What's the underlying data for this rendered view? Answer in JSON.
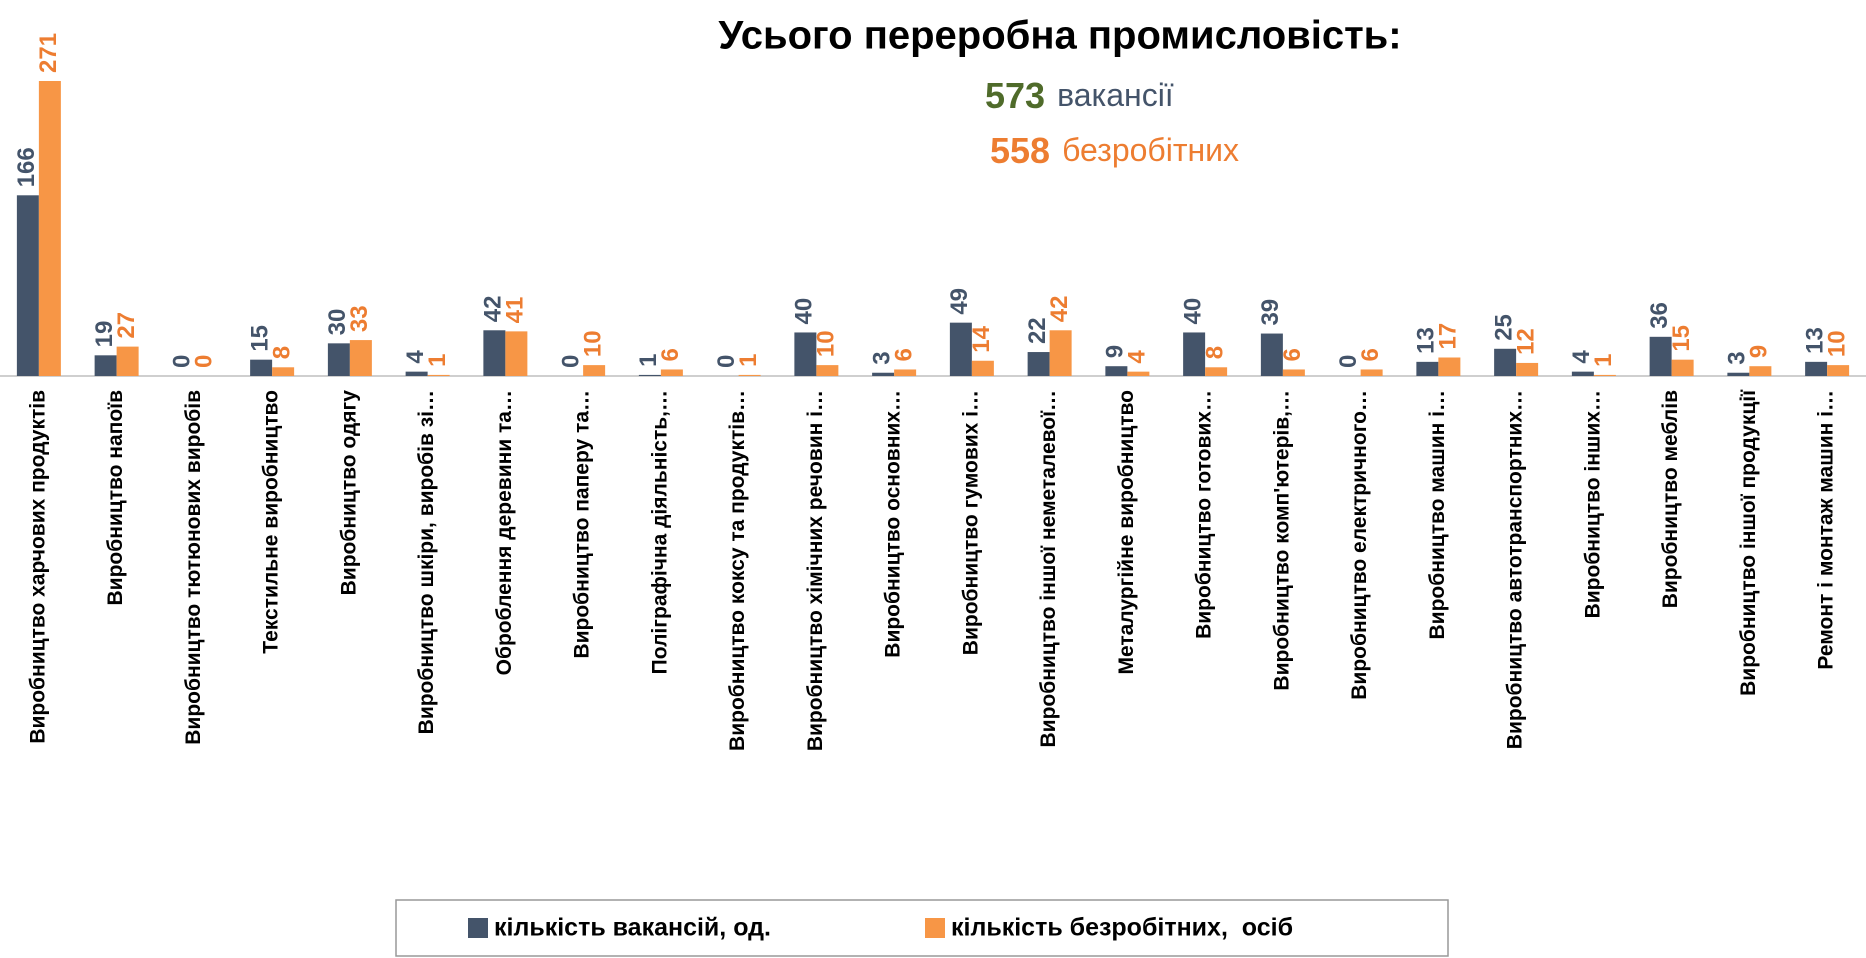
{
  "chart_data": {
    "type": "bar",
    "title": "Усього переробна промисловість:",
    "annotations": [
      {
        "number": 573,
        "text": "вакансії",
        "color": "#4f6b2a",
        "text_color": "#44546a"
      },
      {
        "number": 558,
        "text": "безробітних",
        "color": "#ed7d31",
        "text_color": "#ed7d31"
      }
    ],
    "categories": [
      "Виробництво харчових продуктів",
      "Виробництво напоїв",
      "Виробництво тютюнових виробів",
      "Текстильне виробництво",
      "Виробництво одягу",
      "Виробництво шкіри, виробів зі…",
      "Оброблення деревини та…",
      "Виробництво паперу та…",
      "Поліграфічна діяльність,…",
      "Виробництво коксу та продуктів…",
      "Виробництво хімічних речовин і…",
      "Виробництво основних…",
      "Виробництво гумових і…",
      "Виробництво іншої неметалевої…",
      "Металургійне виробництво",
      "Виробництво готових…",
      "Виробництво комп'ютерів,…",
      "Виробництво електричного…",
      "Виробництво машин і…",
      "Виробництво автотранспортних…",
      "Виробництво інших…",
      "Виробництво меблів",
      "Виробництво іншої продукції",
      "Ремонт і монтаж машин і…"
    ],
    "series": [
      {
        "name": "кількість вакансій, од.",
        "color": "#44546a",
        "values": [
          166,
          19,
          0,
          15,
          30,
          4,
          42,
          0,
          1,
          0,
          40,
          3,
          49,
          22,
          9,
          40,
          39,
          0,
          13,
          25,
          4,
          36,
          3,
          13
        ]
      },
      {
        "name": "кількість безробітних,  осіб",
        "color": "#f79646",
        "values": [
          271,
          27,
          0,
          8,
          33,
          1,
          41,
          10,
          6,
          1,
          10,
          6,
          14,
          42,
          4,
          8,
          6,
          6,
          17,
          12,
          1,
          15,
          9,
          10
        ]
      }
    ],
    "ylim": [
      0,
      271
    ],
    "legend": "bottom"
  }
}
